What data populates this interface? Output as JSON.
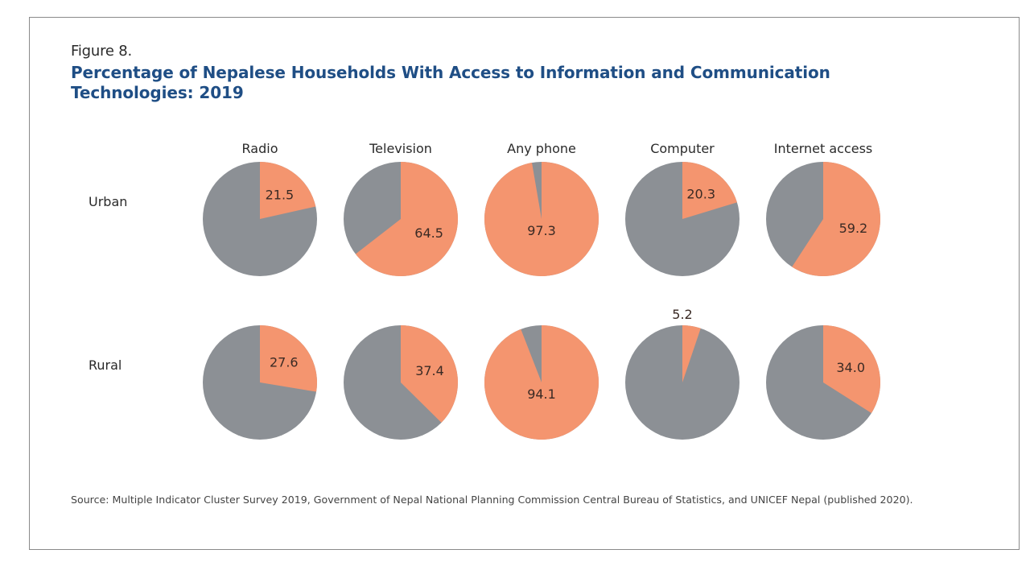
{
  "figure_label": "Figure 8.",
  "title": "Percentage of Nepalese Households With Access to Information and Communication Technologies: 2019",
  "source": "Source: Multiple Indicator Cluster Survey 2019, Government of Nepal National Planning Commission Central Bureau of Statistics, and UNICEF Nepal (published 2020).",
  "colors": {
    "access": "#F4956F",
    "no_access": "#8C9095",
    "title": "#1F4E85"
  },
  "chart_data": {
    "type": "pie",
    "title": "Percentage of Nepalese Households With Access to Information and Communication Technologies: 2019",
    "categories": [
      "Radio",
      "Television",
      "Any phone",
      "Computer",
      "Internet access"
    ],
    "rows": [
      "Urban",
      "Rural"
    ],
    "series": [
      {
        "name": "Urban",
        "values": [
          21.5,
          64.5,
          97.3,
          20.3,
          59.2
        ]
      },
      {
        "name": "Rural",
        "values": [
          27.6,
          37.4,
          94.1,
          5.2,
          34.0
        ]
      }
    ],
    "value_labels": [
      [
        "21.5",
        "64.5",
        "97.3",
        "20.3",
        "59.2"
      ],
      [
        "27.6",
        "37.4",
        "94.1",
        "5.2",
        "34.0"
      ]
    ],
    "unit": "percent",
    "legend": "none"
  }
}
